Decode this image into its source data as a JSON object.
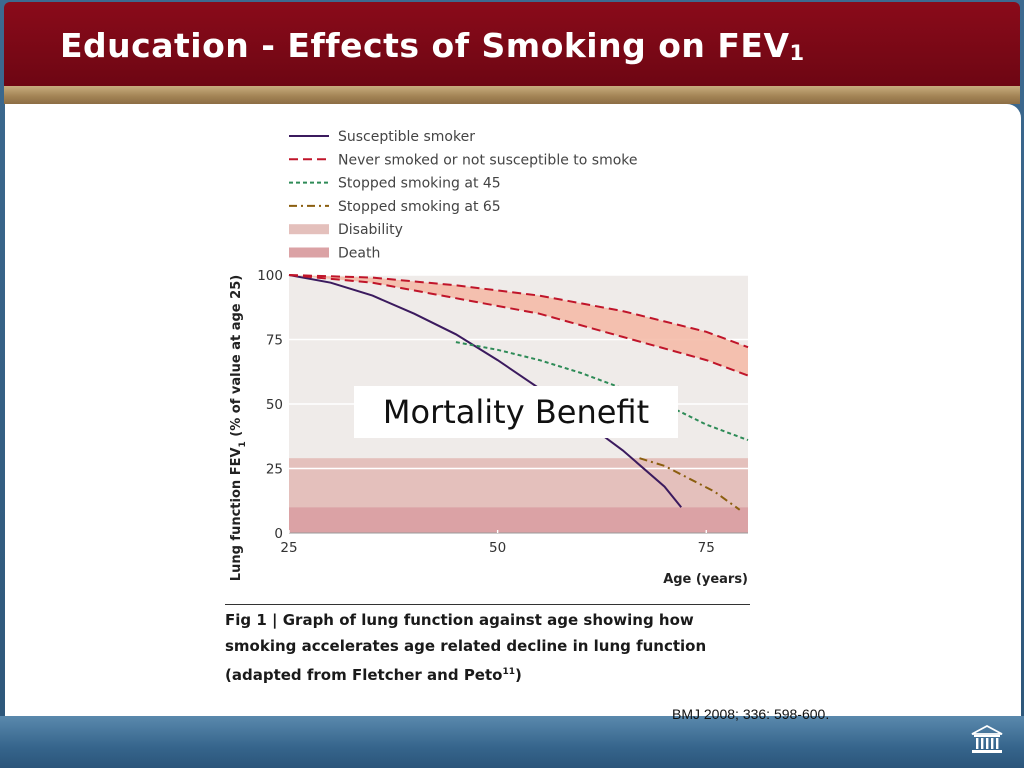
{
  "slide": {
    "title": "Education - Effects of Smoking on FEV",
    "title_subscript": "1",
    "citation": "BMJ 2008; 336: 598-600."
  },
  "annotation": "Mortality Benefit",
  "caption": {
    "label": "Fig 1",
    "separator": " | ",
    "text": "Graph of lung function against age showing how smoking accelerates age related decline in lung function (adapted from Fletcher and Peto",
    "superscript": "11",
    "closing": ")"
  },
  "chart_data": {
    "type": "line",
    "xlabel": "Age (years)",
    "ylabel": "Lung function FEV",
    "ylabel_subscript": "1",
    "ylabel_suffix": " (% of value at age 25)",
    "xlim": [
      25,
      80
    ],
    "ylim": [
      0,
      100
    ],
    "x_ticks": [
      25,
      50,
      75
    ],
    "y_ticks": [
      0,
      25,
      50,
      75,
      100
    ],
    "legend_position": "top",
    "series": [
      {
        "name": "Susceptible smoker",
        "color": "#3b1a5e",
        "style": "solid",
        "points": [
          [
            25,
            100
          ],
          [
            30,
            97
          ],
          [
            35,
            92
          ],
          [
            40,
            85
          ],
          [
            45,
            77
          ],
          [
            50,
            67
          ],
          [
            55,
            56
          ],
          [
            60,
            44
          ],
          [
            65,
            32
          ],
          [
            70,
            18
          ],
          [
            72,
            10
          ]
        ]
      },
      {
        "name": "Never smoked or not susceptible to smoke",
        "color": "#c0152a",
        "style": "dashed",
        "upper": [
          [
            25,
            100
          ],
          [
            35,
            99
          ],
          [
            45,
            96
          ],
          [
            55,
            92
          ],
          [
            65,
            86
          ],
          [
            75,
            78
          ],
          [
            80,
            72
          ]
        ],
        "lower": [
          [
            25,
            100
          ],
          [
            35,
            97
          ],
          [
            45,
            91
          ],
          [
            55,
            85
          ],
          [
            65,
            76
          ],
          [
            75,
            67
          ],
          [
            80,
            61
          ]
        ]
      },
      {
        "name": "Stopped smoking at 45",
        "color": "#2e8b57",
        "style": "dotted",
        "points": [
          [
            45,
            74
          ],
          [
            50,
            71
          ],
          [
            55,
            67
          ],
          [
            60,
            62
          ],
          [
            65,
            56
          ],
          [
            70,
            50
          ],
          [
            75,
            42
          ],
          [
            80,
            36
          ]
        ]
      },
      {
        "name": "Stopped smoking at 65",
        "color": "#8b5e0f",
        "style": "dashdot",
        "points": [
          [
            67,
            29
          ],
          [
            70,
            26
          ],
          [
            73,
            21
          ],
          [
            76,
            16
          ],
          [
            79,
            9
          ]
        ]
      }
    ],
    "regions": [
      {
        "name": "Disability",
        "color": "#e4c0bc",
        "range": [
          10,
          29
        ]
      },
      {
        "name": "Death",
        "color": "#dba2a5",
        "range": [
          0,
          10
        ]
      }
    ],
    "grid": "horizontal",
    "background": "#efebe9"
  }
}
